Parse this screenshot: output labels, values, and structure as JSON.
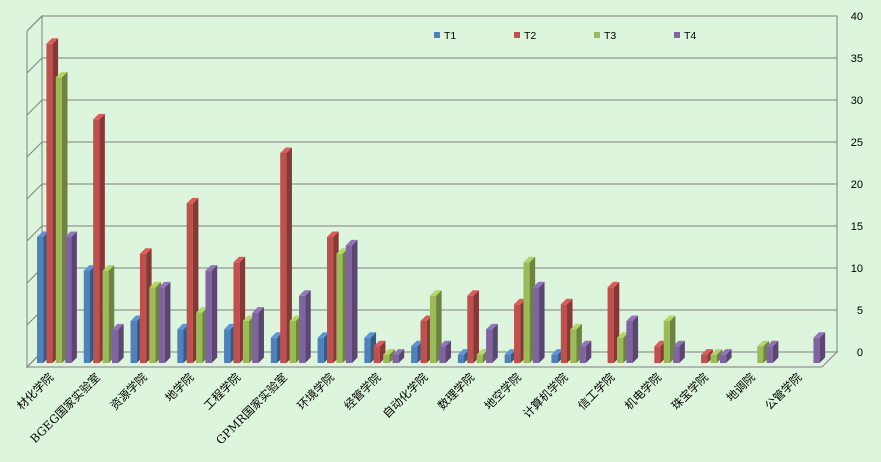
{
  "chart_data": {
    "type": "bar",
    "style": "3d-clustered-column",
    "title": "",
    "xlabel": "",
    "ylabel": "",
    "ylim": [
      0,
      40
    ],
    "yticks": [
      0,
      5,
      10,
      15,
      20,
      25,
      30,
      35,
      40
    ],
    "y_axis_side": "right",
    "grid": true,
    "legend_position": "top",
    "categories": [
      "材化学院",
      "BGEG国家实验室",
      "资源学院",
      "地学院",
      "工程学院",
      "GPMR国家实验室",
      "环境学院",
      "经管学院",
      "自动化学院",
      "数理学院",
      "地空学院",
      "计算机学院",
      "信工学院",
      "机电学院",
      "珠宝学院",
      "地调院",
      "公管学院"
    ],
    "series": [
      {
        "name": "T1",
        "color": "#4f81bd",
        "values": [
          15,
          11,
          5,
          4,
          4,
          3,
          3,
          3,
          2,
          1,
          1,
          1,
          0,
          0,
          0,
          0,
          0
        ]
      },
      {
        "name": "T2",
        "color": "#c0504d",
        "values": [
          38,
          29,
          13,
          19,
          12,
          25,
          15,
          2,
          5,
          8,
          7,
          7,
          9,
          2,
          1,
          0,
          0
        ]
      },
      {
        "name": "T3",
        "color": "#9bbb59",
        "values": [
          34,
          11,
          9,
          6,
          5,
          5,
          13,
          1,
          8,
          1,
          12,
          4,
          3,
          5,
          1,
          2,
          0
        ]
      },
      {
        "name": "T4",
        "color": "#8064a2",
        "values": [
          15,
          4,
          9,
          11,
          6,
          8,
          14,
          1,
          2,
          4,
          9,
          2,
          5,
          2,
          1,
          2,
          3
        ]
      }
    ]
  }
}
